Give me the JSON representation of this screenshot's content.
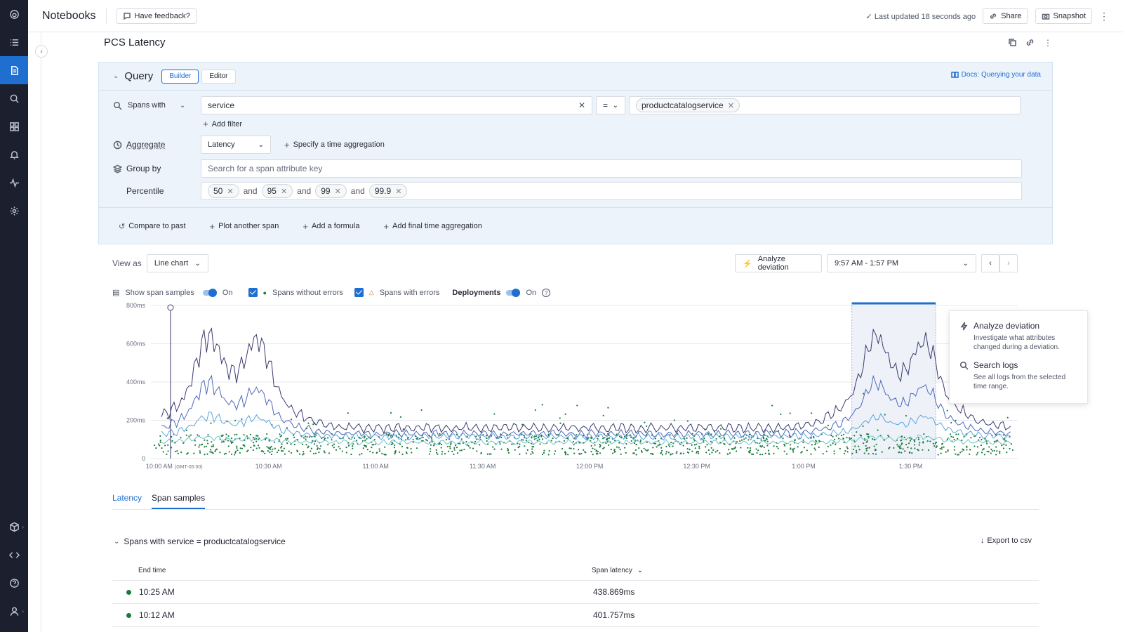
{
  "app": {
    "title": "Notebooks",
    "feedback_label": "Have feedback?",
    "last_updated": "Last updated 18 seconds ago",
    "share_label": "Share",
    "snapshot_label": "Snapshot"
  },
  "rail": {
    "icons": [
      "logo-icon",
      "list-icon",
      "notebook-icon",
      "search-icon",
      "dashboard-icon",
      "bell-icon",
      "activity-icon",
      "gear-icon",
      "package-icon",
      "code-icon",
      "help-icon",
      "user-icon"
    ],
    "active": "notebook-icon"
  },
  "notebook": {
    "title": "PCS Latency"
  },
  "query": {
    "title": "Query",
    "modes": [
      "Builder",
      "Editor"
    ],
    "active_mode": "Builder",
    "docs_link": "Docs: Querying your data",
    "spans_with_label": "Spans with",
    "filter_key": "service",
    "operator": "=",
    "filter_value": "productcatalogservice",
    "add_filter": "Add filter",
    "aggregate_label": "Aggregate",
    "aggregate_value": "Latency",
    "time_aggregation": "Specify a time aggregation",
    "group_by_label": "Group by",
    "group_by_placeholder": "Search for a span attribute key",
    "percentile_label": "Percentile",
    "percentiles": [
      "50",
      "95",
      "99",
      "99.9"
    ],
    "and_word": "and",
    "footer_actions": [
      "Compare to past",
      "Plot another span",
      "Add a formula",
      "Add final time aggregation"
    ]
  },
  "view": {
    "view_as_label": "View as",
    "view_as_value": "Line chart",
    "analyze_deviation": "Analyze deviation",
    "time_range": "9:57 AM - 1:57 PM"
  },
  "legend": {
    "show_span_samples": "Show span samples",
    "on": "On",
    "without_errors": "Spans without errors",
    "with_errors": "Spans with errors",
    "deployments": "Deployments"
  },
  "colors": {
    "accent": "#1f6fd1",
    "rail_bg": "#1b1f2e",
    "p999": "#3b3a6e",
    "p99": "#4f69b8",
    "p95": "#5aa5dc",
    "p50": "#6fc3c9",
    "ok_dot": "#1b7a3b",
    "error": "#e07b39"
  },
  "chart_data": {
    "type": "line",
    "x_range": [
      "10:00 AM",
      "1:40 PM"
    ],
    "ylim": [
      0,
      800
    ],
    "y_ticks": [
      "800ms",
      "600ms",
      "400ms",
      "200ms",
      "0"
    ],
    "y_tick_values": [
      800,
      600,
      400,
      200,
      0
    ],
    "x_ticks": [
      "10:00 AM",
      "10:30 AM",
      "11:00 AM",
      "11:30 AM",
      "12:00 PM",
      "12:30 PM",
      "1:00 PM",
      "1:30 PM"
    ],
    "x_tick_suffix": "(GMT-05:00)",
    "x_tick_minutes": [
      0,
      30,
      60,
      90,
      120,
      150,
      180,
      210
    ],
    "x_min": -3,
    "x_max": 240,
    "deployment_marker_minute": 2.5,
    "selection_minutes": [
      193.5,
      217
    ],
    "series": [
      {
        "key": "p999",
        "peaks": [
          {
            "t": 13,
            "v": 620
          },
          {
            "t": 27,
            "v": 600
          },
          {
            "t": 200,
            "v": 620
          },
          {
            "t": 214,
            "v": 590
          }
        ],
        "base": 160
      },
      {
        "key": "p99",
        "peaks": [
          {
            "t": 13,
            "v": 390
          },
          {
            "t": 27,
            "v": 340
          },
          {
            "t": 200,
            "v": 380
          },
          {
            "t": 214,
            "v": 360
          }
        ],
        "base": 130
      },
      {
        "key": "p95",
        "peaks": [
          {
            "t": 13,
            "v": 220
          },
          {
            "t": 27,
            "v": 210
          },
          {
            "t": 200,
            "v": 210
          },
          {
            "t": 214,
            "v": 215
          }
        ],
        "base": 115
      },
      {
        "key": "p50",
        "peaks": [
          {
            "t": 13,
            "v": 110
          },
          {
            "t": 27,
            "v": 105
          },
          {
            "t": 200,
            "v": 110
          },
          {
            "t": 214,
            "v": 110
          }
        ],
        "base": 85
      }
    ]
  },
  "popup": {
    "items": [
      {
        "title": "Analyze deviation",
        "desc": "Investigate what attributes changed during a deviation."
      },
      {
        "title": "Search logs",
        "desc": "See all logs from the selected time range."
      }
    ]
  },
  "result_tabs": [
    "Latency",
    "Span samples"
  ],
  "active_result_tab": "Span samples",
  "spans": {
    "header": "Spans with service = productcatalogservice",
    "export": "Export to csv",
    "columns": [
      "End time",
      "Span latency"
    ],
    "rows": [
      {
        "time": "10:25 AM",
        "latency": "438.869ms"
      },
      {
        "time": "10:12 AM",
        "latency": "401.757ms"
      }
    ]
  }
}
